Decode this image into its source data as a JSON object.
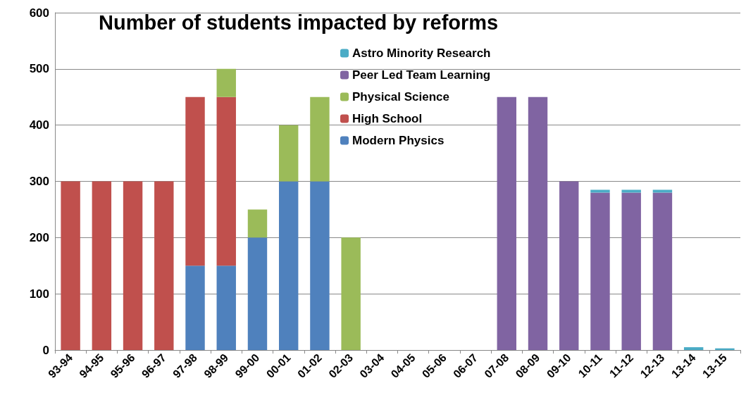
{
  "chart_data": {
    "type": "bar",
    "title": "Number of students impacted by reforms",
    "stacked": true,
    "categories": [
      "93-94",
      "94-95",
      "95-96",
      "96-97",
      "97-98",
      "98-99",
      "99-00",
      "00-01",
      "01-02",
      "02-03",
      "03-04",
      "04-05",
      "05-06",
      "06-07",
      "07-08",
      "08-09",
      "09-10",
      "10-11",
      "11-12",
      "12-13",
      "13-14",
      "13-15"
    ],
    "series": [
      {
        "name": "Modern Physics",
        "color": "#4f81bd",
        "values": [
          null,
          null,
          null,
          null,
          150,
          150,
          200,
          300,
          300,
          null,
          null,
          null,
          null,
          null,
          null,
          null,
          null,
          null,
          null,
          null,
          null,
          null
        ]
      },
      {
        "name": "High School",
        "color": "#c0504d",
        "values": [
          300,
          300,
          300,
          300,
          300,
          300,
          null,
          null,
          null,
          null,
          null,
          null,
          null,
          null,
          null,
          null,
          null,
          null,
          null,
          null,
          null,
          null
        ]
      },
      {
        "name": "Physical Science",
        "color": "#9bbb59",
        "values": [
          null,
          null,
          null,
          null,
          null,
          50,
          50,
          100,
          150,
          200,
          null,
          null,
          null,
          null,
          null,
          null,
          null,
          null,
          null,
          null,
          null,
          null
        ]
      },
      {
        "name": "Peer Led Team Learning",
        "color": "#8064a2",
        "values": [
          null,
          null,
          null,
          null,
          null,
          null,
          null,
          null,
          null,
          null,
          null,
          null,
          null,
          null,
          450,
          450,
          300,
          280,
          280,
          280,
          null,
          null
        ]
      },
      {
        "name": "Astro Minority Research",
        "color": "#4bacc6",
        "values": [
          null,
          null,
          null,
          null,
          null,
          null,
          null,
          null,
          null,
          null,
          null,
          null,
          null,
          null,
          null,
          null,
          null,
          5,
          5,
          5,
          5,
          3
        ]
      }
    ],
    "ylim": [
      0,
      600
    ],
    "yticks": [
      0,
      100,
      200,
      300,
      400,
      500,
      600
    ],
    "grid": "y",
    "legend": "top right"
  }
}
